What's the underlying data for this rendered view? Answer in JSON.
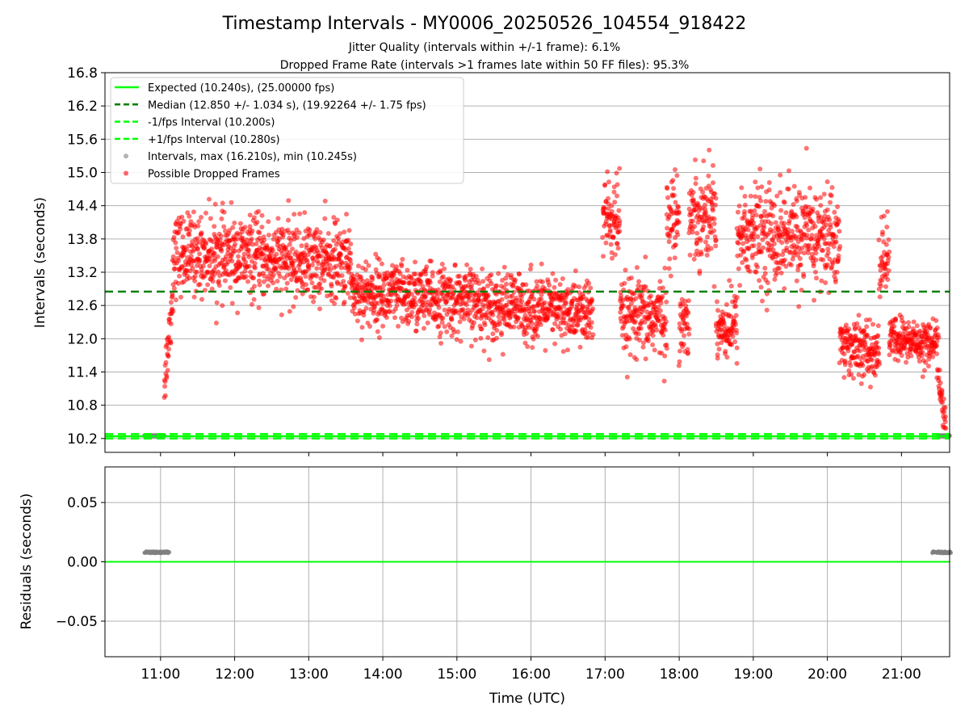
{
  "title": "Timestamp Intervals - MY0006_20250526_104554_918422",
  "subtitle_lines": [
    "Jitter Quality (intervals within +/-1 frame): 6.1%",
    "Dropped Frame Rate (intervals >1 frames late within 50 FF files): 95.3%"
  ],
  "chart_data": [
    {
      "type": "scatter",
      "panel": "top",
      "ylabel": "Intervals (seconds)",
      "xlabel": "",
      "xlim_hours": [
        10.25,
        21.65
      ],
      "ylim": [
        9.95,
        16.8
      ],
      "yticks": [
        10.2,
        10.8,
        11.4,
        12.0,
        12.6,
        13.2,
        13.8,
        14.4,
        15.0,
        15.6,
        16.2,
        16.8
      ],
      "ytick_labels": [
        "10.2",
        "10.8",
        "11.4",
        "12.0",
        "12.6",
        "13.2",
        "13.8",
        "14.4",
        "15.0",
        "15.6",
        "16.2",
        "16.8"
      ],
      "grid": true,
      "legend_position": "top-left",
      "legend": [
        {
          "label": "Expected (10.240s), (25.00000 fps)",
          "style": "solid",
          "color": "#00ff00"
        },
        {
          "label": "Median (12.850 +/- 1.034 s), (19.92264 +/- 1.75 fps)",
          "style": "dashed",
          "color": "#008000"
        },
        {
          "label": "-1/fps Interval (10.200s)",
          "style": "dashed",
          "color": "#00ff00"
        },
        {
          "label": "+1/fps Interval (10.280s)",
          "style": "dashed",
          "color": "#00ff00"
        },
        {
          "label": "Intervals, max (16.210s), min (10.245s)",
          "style": "marker",
          "color": "#808080"
        },
        {
          "label": "Possible Dropped Frames",
          "style": "marker",
          "color": "#ff0000"
        }
      ],
      "reference_lines": {
        "expected": 10.24,
        "median": 12.85,
        "minus_1fps": 10.2,
        "plus_1fps": 10.28
      },
      "dropped_frame_segments": [
        {
          "start": "11:03",
          "end": "11:10",
          "mean_start": 11.2,
          "mean_end": 12.8,
          "spread": 0.25
        },
        {
          "start": "11:10",
          "end": "13:35",
          "mean_start": 13.55,
          "mean_end": 13.35,
          "spread": 0.35
        },
        {
          "start": "13:35",
          "end": "16:50",
          "mean_start": 12.85,
          "mean_end": 12.45,
          "spread": 0.3
        },
        {
          "start": "16:58",
          "end": "17:12",
          "mean_start": 14.2,
          "mean_end": 14.1,
          "spread": 0.4
        },
        {
          "start": "17:12",
          "end": "17:50",
          "mean_start": 12.35,
          "mean_end": 12.4,
          "spread": 0.35
        },
        {
          "start": "17:50",
          "end": "18:00",
          "mean_start": 14.0,
          "mean_end": 14.3,
          "spread": 0.4
        },
        {
          "start": "18:00",
          "end": "18:08",
          "mean_start": 12.3,
          "mean_end": 12.3,
          "spread": 0.3
        },
        {
          "start": "18:08",
          "end": "18:30",
          "mean_start": 14.2,
          "mean_end": 14.3,
          "spread": 0.4
        },
        {
          "start": "18:30",
          "end": "18:47",
          "mean_start": 12.2,
          "mean_end": 12.25,
          "spread": 0.3
        },
        {
          "start": "18:47",
          "end": "20:10",
          "mean_start": 13.9,
          "mean_end": 13.8,
          "spread": 0.45
        },
        {
          "start": "20:10",
          "end": "20:42",
          "mean_start": 11.9,
          "mean_end": 11.7,
          "spread": 0.25
        },
        {
          "start": "20:42",
          "end": "20:50",
          "mean_start": 13.4,
          "mean_end": 13.5,
          "spread": 0.35
        },
        {
          "start": "20:50",
          "end": "21:30",
          "mean_start": 12.0,
          "mean_end": 11.9,
          "spread": 0.2
        },
        {
          "start": "21:30",
          "end": "21:36",
          "mean_start": 11.3,
          "mean_end": 10.3,
          "spread": 0.2
        }
      ],
      "normal_interval_segments": [
        {
          "start": "10:47",
          "end": "11:03",
          "value": 10.25
        },
        {
          "start": "21:30",
          "end": "21:39",
          "value": 10.25
        }
      ]
    },
    {
      "type": "scatter",
      "panel": "bottom",
      "ylabel": "Residuals (seconds)",
      "xlabel": "Time (UTC)",
      "xlim_hours": [
        10.25,
        21.65
      ],
      "ylim": [
        -0.08,
        0.08
      ],
      "yticks": [
        -0.05,
        0.0,
        0.05
      ],
      "ytick_labels": [
        "−0.05",
        "0.00",
        "0.05"
      ],
      "xticks_hours": [
        11,
        12,
        13,
        14,
        15,
        16,
        17,
        18,
        19,
        20,
        21
      ],
      "xtick_labels": [
        "11:00",
        "12:00",
        "13:00",
        "14:00",
        "15:00",
        "16:00",
        "17:00",
        "18:00",
        "19:00",
        "20:00",
        "21:00"
      ],
      "grid": true,
      "zero_line_color": "#00ff00",
      "residual_segments": [
        {
          "start": "10:47",
          "end": "11:07",
          "value": 0.008
        },
        {
          "start": "21:25",
          "end": "21:40",
          "value": 0.008
        }
      ]
    }
  ]
}
